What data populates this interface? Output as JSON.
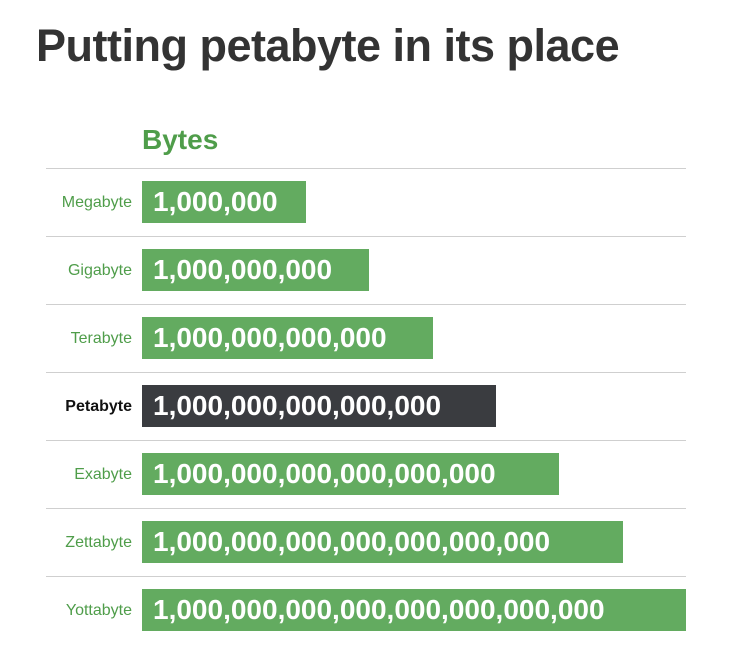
{
  "title": "Putting petabyte in its place",
  "chart_data": {
    "type": "bar",
    "orientation": "horizontal",
    "title": "Putting petabyte in its place",
    "column_header": "Bytes",
    "categories": [
      "Megabyte",
      "Gigabyte",
      "Terabyte",
      "Petabyte",
      "Exabyte",
      "Zettabyte",
      "Yottabyte"
    ],
    "labels": [
      "1,000,000",
      "1,000,000,000",
      "1,000,000,000,000",
      "1,000,000,000,000,000",
      "1,000,000,000,000,000,000",
      "1,000,000,000,000,000,000,000",
      "1,000,000,000,000,000,000,000,000"
    ],
    "values": [
      1000000.0,
      1000000000.0,
      1000000000000.0,
      1000000000000000.0,
      1e+18,
      1e+21,
      1e+24
    ],
    "highlight": "Petabyte",
    "colors": {
      "bar": "#63ab60",
      "highlight_bar": "#3a3c40",
      "label": "#4f9d4a",
      "highlight_label": "#111111",
      "title": "#333333"
    },
    "grid": "horizontal separators",
    "legend": "none"
  }
}
